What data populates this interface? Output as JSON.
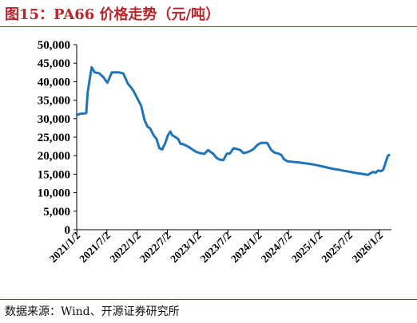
{
  "figure": {
    "title": "图15：PA66 价格走势（元/吨）",
    "source": "数据来源：Wind、开源证券研究所"
  },
  "colors": {
    "line": "#1f75b8",
    "accent": "#b8262b",
    "axis": "#000000"
  },
  "chart_data": {
    "type": "line",
    "title": "",
    "xlabel": "",
    "ylabel": "",
    "ylim": [
      0,
      50000
    ],
    "yticks": [
      0,
      5000,
      10000,
      15000,
      20000,
      25000,
      30000,
      35000,
      40000,
      45000,
      50000
    ],
    "ytick_labels": [
      "0",
      "5,000",
      "10,000",
      "15,000",
      "20,000",
      "25,000",
      "30,000",
      "35,000",
      "40,000",
      "45,000",
      "50,000"
    ],
    "xlim": [
      "2021-01-01",
      "2026-03-15"
    ],
    "xticks": [
      "2021-01-02",
      "2021-07-02",
      "2022-01-02",
      "2022-07-02",
      "2023-01-02",
      "2023-07-02",
      "2024-01-02",
      "2024-07-02",
      "2025-01-02",
      "2025-07-02",
      "2026-01-02"
    ],
    "xtick_labels": [
      "2021/1/2",
      "2021/7/2",
      "2022/1/2",
      "2022/7/2",
      "2023/1/2",
      "2023/7/2",
      "2024/1/2",
      "2024/7/2",
      "2025/1/2",
      "2025/7/2",
      "2026/1/2"
    ],
    "grid": false,
    "series": [
      {
        "name": "",
        "x": [
          "2021-01-02",
          "2021-01-20",
          "2021-02-15",
          "2021-02-28",
          "2021-03-08",
          "2021-03-20",
          "2021-04-01",
          "2021-04-20",
          "2021-05-15",
          "2021-06-10",
          "2021-07-05",
          "2021-08-01",
          "2021-08-20",
          "2021-09-15",
          "2021-10-10",
          "2021-11-05",
          "2021-11-25",
          "2021-12-10",
          "2022-01-02",
          "2022-01-25",
          "2022-02-15",
          "2022-03-05",
          "2022-03-20",
          "2022-04-10",
          "2022-04-28",
          "2022-05-15",
          "2022-06-01",
          "2022-06-20",
          "2022-07-05",
          "2022-07-20",
          "2022-08-01",
          "2022-08-20",
          "2022-09-05",
          "2022-09-20",
          "2022-10-05",
          "2022-10-20",
          "2022-11-10",
          "2022-12-05",
          "2022-12-25",
          "2023-01-15",
          "2023-02-10",
          "2023-03-05",
          "2023-03-20",
          "2023-04-05",
          "2023-04-25",
          "2023-05-15",
          "2023-06-05",
          "2023-06-25",
          "2023-07-15",
          "2023-08-05",
          "2023-08-25",
          "2023-09-15",
          "2023-10-05",
          "2023-10-25",
          "2023-11-15",
          "2023-12-05",
          "2023-12-25",
          "2024-01-15",
          "2024-02-05",
          "2024-02-25",
          "2024-03-20",
          "2024-04-10",
          "2024-04-30",
          "2024-05-20",
          "2024-06-05",
          "2024-06-25",
          "2024-07-15",
          "2024-08-05",
          "2024-09-01",
          "2024-10-01",
          "2024-11-01",
          "2024-12-01",
          "2025-01-01",
          "2025-02-01",
          "2025-03-01",
          "2025-04-01",
          "2025-05-01",
          "2025-06-01",
          "2025-07-01",
          "2025-08-01",
          "2025-09-01",
          "2025-10-01",
          "2025-10-25",
          "2025-11-10",
          "2025-11-25",
          "2025-12-10",
          "2025-12-25",
          "2026-01-10",
          "2026-01-25",
          "2026-02-10",
          "2026-02-22",
          "2026-03-01"
        ],
        "y": [
          31000,
          31300,
          31400,
          31500,
          37000,
          40500,
          43900,
          42500,
          42300,
          41300,
          39700,
          42500,
          42500,
          42500,
          42200,
          39500,
          38400,
          37500,
          35500,
          33500,
          29500,
          27800,
          27400,
          25500,
          24500,
          22000,
          21700,
          23500,
          25500,
          26500,
          25500,
          25000,
          24500,
          23200,
          23100,
          22800,
          22300,
          21500,
          21000,
          20700,
          20500,
          21500,
          21000,
          20500,
          19400,
          18900,
          18800,
          20500,
          20600,
          22000,
          21800,
          21500,
          20700,
          20900,
          21300,
          21800,
          22800,
          23400,
          23500,
          23400,
          21500,
          20800,
          20600,
          20200,
          19000,
          18500,
          18400,
          18300,
          18200,
          18000,
          17800,
          17600,
          17300,
          17000,
          16700,
          16400,
          16200,
          15900,
          15700,
          15400,
          15200,
          15000,
          14800,
          15300,
          15600,
          15400,
          16000,
          15800,
          16200,
          18500,
          20000,
          20200
        ]
      }
    ]
  }
}
